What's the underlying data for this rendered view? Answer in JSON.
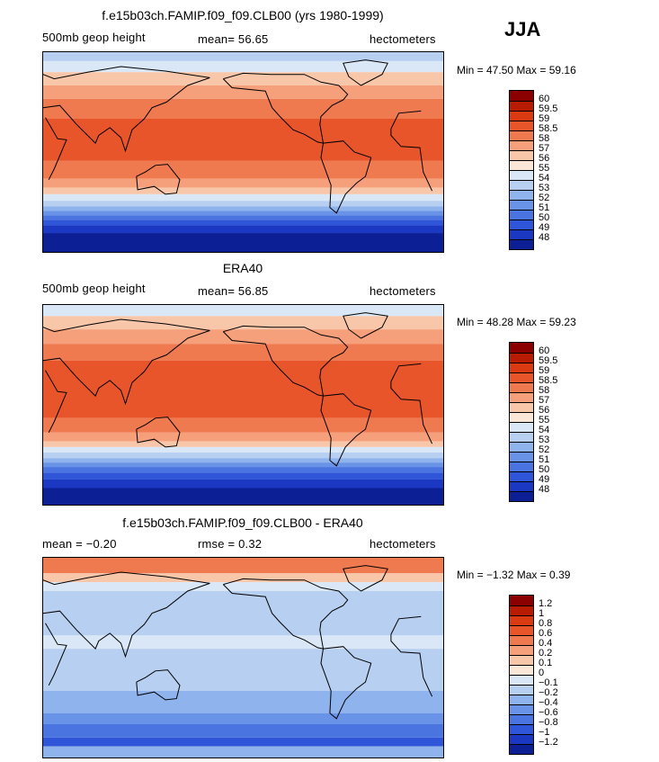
{
  "season_label": "JJA",
  "panels": [
    {
      "id": "model",
      "title": "f.e15b03ch.FAMIP.f09_f09.CLB00 (yrs 1980-1999)",
      "left_label": "500mb geop height",
      "center_label": "mean=  56.65",
      "units": "hectometers",
      "min_max": "Min =  47.50 Max =  59.16",
      "colorbar_colors": [
        "#8b0000",
        "#b71c00",
        "#d93a12",
        "#e8552a",
        "#f07a50",
        "#f5a07a",
        "#f8c7aa",
        "#fbe7d8",
        "#d9e7f7",
        "#b7cff1",
        "#8fb3ec",
        "#6993e6",
        "#4a74e0",
        "#2f56d8",
        "#1b38c3",
        "#0d1f95"
      ],
      "colorbar_labels": [
        "60",
        "59.5",
        "59",
        "58.5",
        "58",
        "57",
        "56",
        "55",
        "54",
        "53",
        "52",
        "51",
        "50",
        "49",
        "48"
      ],
      "map_bands": [
        {
          "lat": 90,
          "color": "#b7cff1"
        },
        {
          "lat": 82,
          "color": "#d9e7f7"
        },
        {
          "lat": 72,
          "color": "#f8c7aa"
        },
        {
          "lat": 60,
          "color": "#f5a07a"
        },
        {
          "lat": 48,
          "color": "#f07a50"
        },
        {
          "lat": 30,
          "color": "#e8552a"
        },
        {
          "lat": -8,
          "color": "#f07a50"
        },
        {
          "lat": -24,
          "color": "#f5a07a"
        },
        {
          "lat": -32,
          "color": "#f8c7aa"
        },
        {
          "lat": -38,
          "color": "#d9e7f7"
        },
        {
          "lat": -44,
          "color": "#b7cff1"
        },
        {
          "lat": -49,
          "color": "#8fb3ec"
        },
        {
          "lat": -53,
          "color": "#6993e6"
        },
        {
          "lat": -57,
          "color": "#4a74e0"
        },
        {
          "lat": -61,
          "color": "#2f56d8"
        },
        {
          "lat": -66,
          "color": "#1b38c3"
        },
        {
          "lat": -73,
          "color": "#0d1f95"
        }
      ]
    },
    {
      "id": "obs",
      "title": "ERA40",
      "left_label": "500mb geop height",
      "center_label": "mean=  56.85",
      "units": "hectometers",
      "min_max": "Min =  48.28 Max =  59.23",
      "colorbar_colors": [
        "#8b0000",
        "#b71c00",
        "#d93a12",
        "#e8552a",
        "#f07a50",
        "#f5a07a",
        "#f8c7aa",
        "#fbe7d8",
        "#d9e7f7",
        "#b7cff1",
        "#8fb3ec",
        "#6993e6",
        "#4a74e0",
        "#2f56d8",
        "#1b38c3",
        "#0d1f95"
      ],
      "colorbar_labels": [
        "60",
        "59.5",
        "59",
        "58.5",
        "58",
        "57",
        "56",
        "55",
        "54",
        "53",
        "52",
        "51",
        "50",
        "49",
        "48"
      ],
      "map_bands": [
        {
          "lat": 90,
          "color": "#d9e7f7"
        },
        {
          "lat": 80,
          "color": "#f8c7aa"
        },
        {
          "lat": 68,
          "color": "#f5a07a"
        },
        {
          "lat": 55,
          "color": "#f07a50"
        },
        {
          "lat": 40,
          "color": "#e8552a"
        },
        {
          "lat": -12,
          "color": "#f07a50"
        },
        {
          "lat": -25,
          "color": "#f5a07a"
        },
        {
          "lat": -33,
          "color": "#f8c7aa"
        },
        {
          "lat": -38,
          "color": "#d9e7f7"
        },
        {
          "lat": -43,
          "color": "#b7cff1"
        },
        {
          "lat": -48,
          "color": "#8fb3ec"
        },
        {
          "lat": -52,
          "color": "#6993e6"
        },
        {
          "lat": -56,
          "color": "#4a74e0"
        },
        {
          "lat": -61,
          "color": "#2f56d8"
        },
        {
          "lat": -67,
          "color": "#1b38c3"
        },
        {
          "lat": -75,
          "color": "#0d1f95"
        }
      ]
    },
    {
      "id": "diff",
      "title": "f.e15b03ch.FAMIP.f09_f09.CLB00 - ERA40",
      "left_label": "mean =  −0.20",
      "center_label": "rmse =   0.32",
      "units": "hectometers",
      "min_max": "Min =  −1.32 Max =   0.39",
      "colorbar_colors": [
        "#8b0000",
        "#b71c00",
        "#d93a12",
        "#e8552a",
        "#f07a50",
        "#f5a07a",
        "#f8c7aa",
        "#fbe7d8",
        "#d9e7f7",
        "#b7cff1",
        "#8fb3ec",
        "#6993e6",
        "#4a74e0",
        "#2f56d8",
        "#1b38c3",
        "#0d1f95"
      ],
      "colorbar_labels": [
        "1.2",
        "1",
        "0.8",
        "0.6",
        "0.4",
        "0.2",
        "0.1",
        "0",
        "−0.1",
        "−0.2",
        "−0.4",
        "−0.6",
        "−0.8",
        "−1",
        "−1.2"
      ],
      "map_bands": [
        {
          "lat": 90,
          "color": "#f07a50"
        },
        {
          "lat": 76,
          "color": "#f8c7aa"
        },
        {
          "lat": 68,
          "color": "#d9e7f7"
        },
        {
          "lat": 60,
          "color": "#b7cff1"
        },
        {
          "lat": 20,
          "color": "#d9e7f7"
        },
        {
          "lat": 8,
          "color": "#b7cff1"
        },
        {
          "lat": -30,
          "color": "#8fb3ec"
        },
        {
          "lat": -50,
          "color": "#6993e6"
        },
        {
          "lat": -60,
          "color": "#4a74e0"
        },
        {
          "lat": -72,
          "color": "#2f56d8"
        },
        {
          "lat": -80,
          "color": "#8fb3ec"
        }
      ]
    }
  ]
}
